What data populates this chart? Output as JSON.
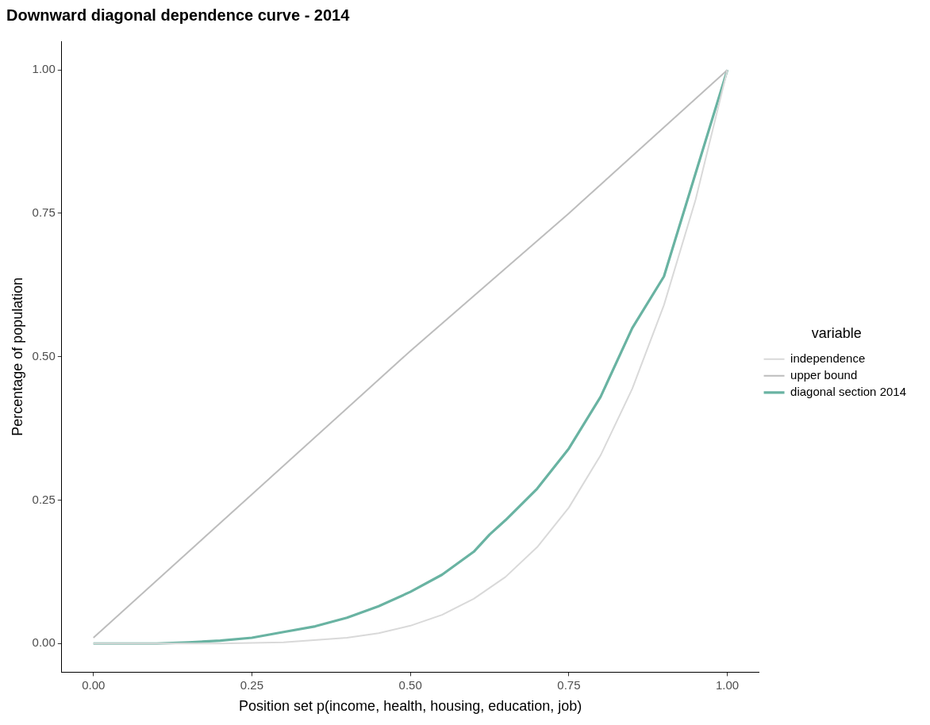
{
  "chart_data": {
    "type": "line",
    "title": "Downward diagonal dependence curve - 2014",
    "xlabel": "Position set p(income, health, housing, education, job)",
    "ylabel": "Percentage of population",
    "legend_title": "variable",
    "legend": "right",
    "grid": false,
    "marker": "none",
    "line_style": "solid",
    "xlim": [
      -0.05,
      1.05
    ],
    "xticks": [
      {
        "value": 0,
        "label": "0.00"
      },
      {
        "value": 0.25,
        "label": "0.25"
      },
      {
        "value": 0.5,
        "label": "0.50"
      },
      {
        "value": 0.75,
        "label": "0.75"
      },
      {
        "value": 1,
        "label": "1.00"
      }
    ],
    "ylim": [
      -0.05,
      1.05
    ],
    "yticks": [
      {
        "value": 0,
        "label": "0.00"
      },
      {
        "value": 0.25,
        "label": "0.25"
      },
      {
        "value": 0.5,
        "label": "0.50"
      },
      {
        "value": 0.75,
        "label": "0.75"
      },
      {
        "value": 1,
        "label": "1.00"
      }
    ],
    "series": [
      {
        "name": "independence",
        "color": "#d9d9d9",
        "x": [
          0,
          0.1,
          0.2,
          0.3,
          0.4,
          0.45,
          0.5,
          0.55,
          0.6,
          0.65,
          0.7,
          0.75,
          0.8,
          0.85,
          0.9,
          0.95,
          1
        ],
        "values": [
          0,
          0,
          0,
          0.002,
          0.01,
          0.018,
          0.031,
          0.05,
          0.078,
          0.116,
          0.168,
          0.237,
          0.328,
          0.444,
          0.59,
          0.774,
          1
        ]
      },
      {
        "name": "upper bound",
        "color": "#bdbdbd",
        "x": [
          0,
          0.25,
          0.5,
          0.75,
          1
        ],
        "values": [
          0.01,
          0.26,
          0.51,
          0.75,
          1
        ]
      },
      {
        "name": "diagonal section 2014",
        "color": "#69b3a2",
        "x": [
          0,
          0.1,
          0.15,
          0.2,
          0.25,
          0.3,
          0.35,
          0.4,
          0.45,
          0.5,
          0.55,
          0.6,
          0.625,
          0.65,
          0.7,
          0.75,
          0.8,
          0.85,
          0.9,
          0.95,
          1
        ],
        "values": [
          0,
          0,
          0.002,
          0.005,
          0.01,
          0.02,
          0.03,
          0.045,
          0.065,
          0.09,
          0.12,
          0.16,
          0.19,
          0.215,
          0.27,
          0.34,
          0.43,
          0.55,
          0.64,
          0.82,
          1
        ]
      }
    ]
  }
}
